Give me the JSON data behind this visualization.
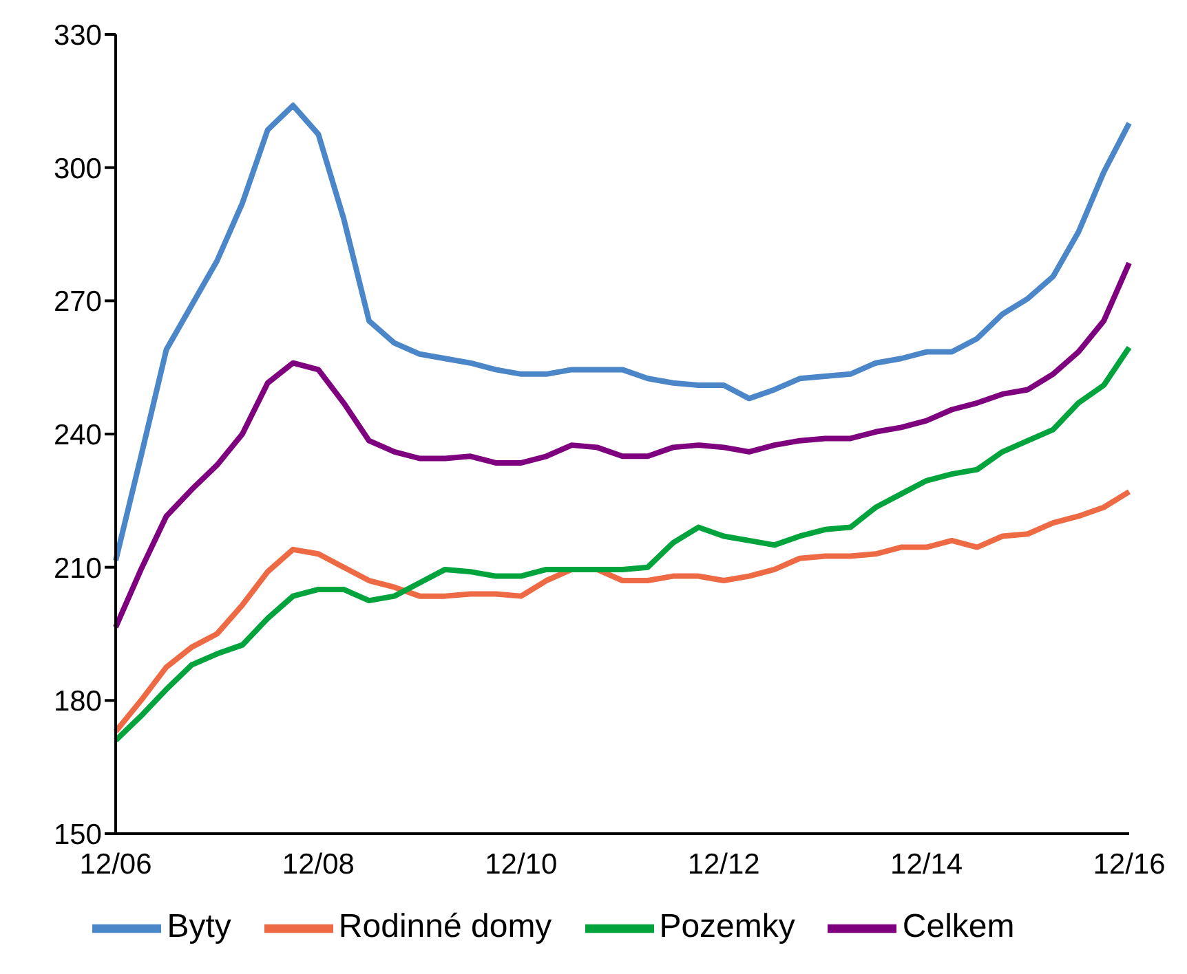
{
  "chart_data": {
    "type": "line",
    "categories": [
      "12/06",
      null,
      null,
      null,
      null,
      null,
      null,
      null,
      "12/08",
      null,
      null,
      null,
      null,
      null,
      null,
      null,
      "12/10",
      null,
      null,
      null,
      null,
      null,
      null,
      null,
      "12/12",
      null,
      null,
      null,
      null,
      null,
      null,
      null,
      "12/14",
      null,
      null,
      null,
      null,
      null,
      null,
      null,
      "12/16"
    ],
    "series": [
      {
        "name": "Byty",
        "color": "#4a86c8",
        "values": [
          211.5,
          235,
          259,
          269,
          279,
          292,
          308.5,
          314,
          307.5,
          288.5,
          265.5,
          260.5,
          258,
          257,
          256,
          254.5,
          253.5,
          253.5,
          254.5,
          254.5,
          254.5,
          252.5,
          251.5,
          251,
          251,
          248,
          250,
          252.5,
          253,
          253.5,
          256,
          257,
          258.5,
          258.5,
          261.5,
          267,
          270.5,
          275.5,
          285.5,
          299,
          310
        ]
      },
      {
        "name": "Rodinné domy",
        "color": "#ee6a44",
        "values": [
          173,
          180,
          187.5,
          192,
          195,
          201.5,
          209,
          214,
          213,
          210,
          207,
          205.5,
          203.5,
          203.5,
          204,
          204,
          203.5,
          207,
          209.5,
          209.5,
          207,
          207,
          208,
          208,
          207,
          208,
          209.5,
          212,
          212.5,
          212.5,
          213,
          214.5,
          214.5,
          216,
          214.5,
          217,
          217.5,
          220,
          221.5,
          223.5,
          227
        ]
      },
      {
        "name": "Pozemky",
        "color": "#00a33c",
        "values": [
          171,
          176.5,
          182.5,
          188,
          190.5,
          192.5,
          198.5,
          203.5,
          205,
          205,
          202.5,
          203.5,
          206.5,
          209.5,
          209,
          208,
          208,
          209.5,
          209.5,
          209.5,
          209.5,
          210,
          215.5,
          219,
          217,
          216,
          215,
          217,
          218.5,
          219,
          223.5,
          226.5,
          229.5,
          231,
          232,
          236,
          238.5,
          241,
          247,
          251,
          259.5
        ]
      },
      {
        "name": "Celkem",
        "color": "#7f007f",
        "values": [
          196.5,
          209.5,
          221.5,
          227.5,
          233,
          240,
          251.5,
          256,
          254.5,
          247,
          238.5,
          236,
          234.5,
          234.5,
          235,
          233.5,
          233.5,
          235,
          237.5,
          237,
          235,
          235,
          237,
          237.5,
          237,
          236,
          237.5,
          238.5,
          239,
          239,
          240.5,
          241.5,
          243,
          245.5,
          247,
          249,
          250,
          253.5,
          258.5,
          265.5,
          278.5
        ]
      }
    ],
    "ylim": [
      150,
      330
    ],
    "yticks": [
      150,
      180,
      210,
      240,
      270,
      300,
      330
    ],
    "grid": false,
    "legend": "bottom",
    "marker": "none",
    "line_style": "solid"
  }
}
